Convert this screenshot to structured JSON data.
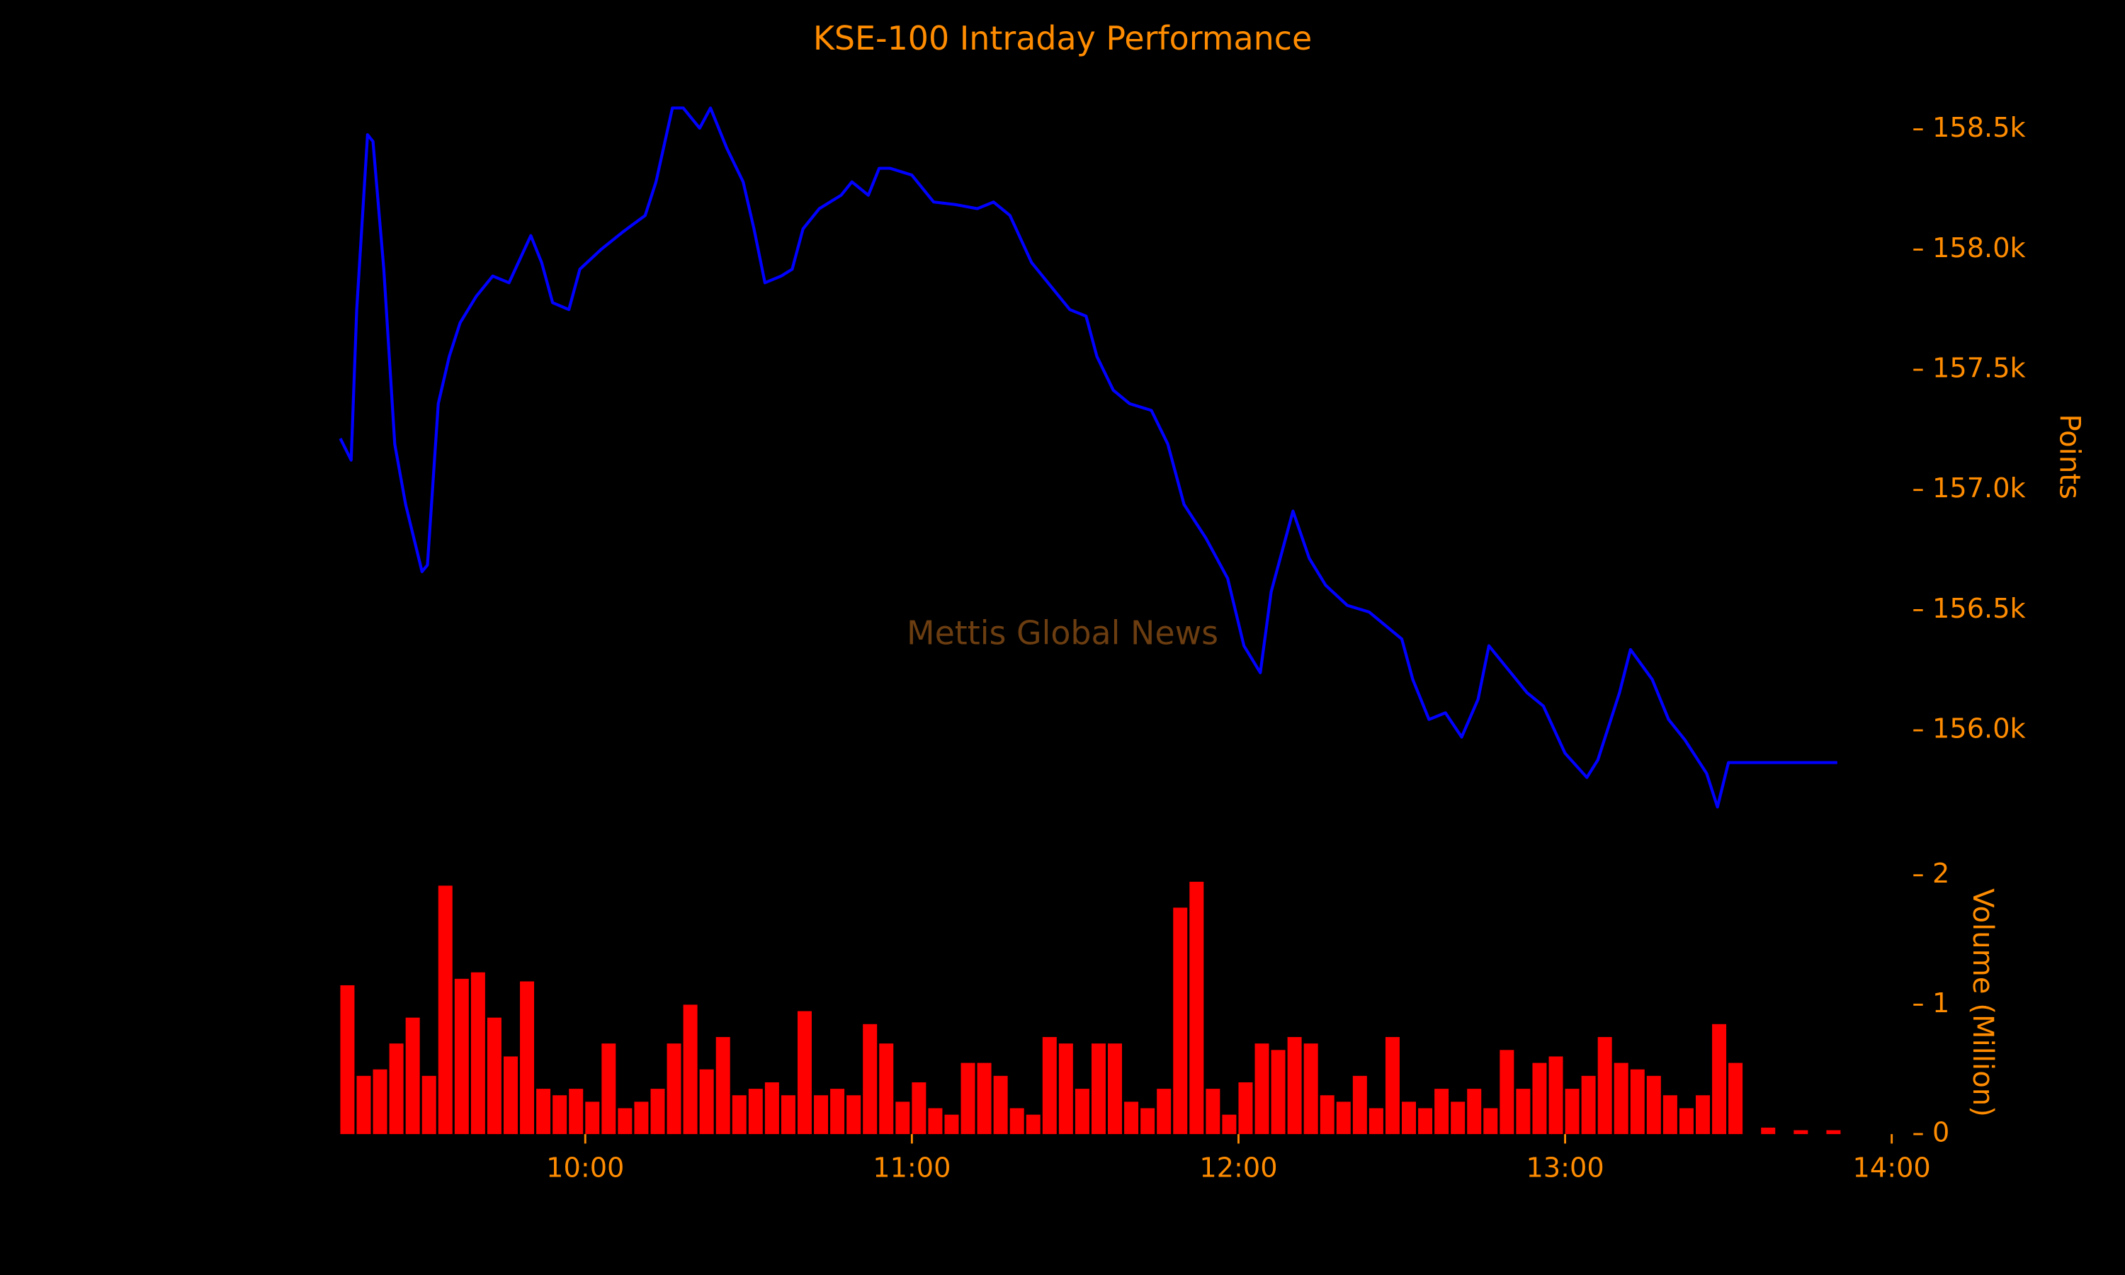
{
  "chart_data": [
    {
      "type": "line",
      "title": "KSE-100 Intraday Performance",
      "ylabel": "Points",
      "annotation": "Mettis Global News",
      "color": "#0000ff",
      "x": [
        "09:15",
        "09:17",
        "09:18",
        "09:20",
        "09:21",
        "09:23",
        "09:25",
        "09:27",
        "09:30",
        "09:31",
        "09:33",
        "09:35",
        "09:37",
        "09:40",
        "09:43",
        "09:46",
        "09:50",
        "09:52",
        "09:54",
        "09:57",
        "09:59",
        "10:03",
        "10:07",
        "10:11",
        "10:13",
        "10:16",
        "10:18",
        "10:21",
        "10:23",
        "10:26",
        "10:29",
        "10:31",
        "10:33",
        "10:36",
        "10:38",
        "10:40",
        "10:43",
        "10:47",
        "10:49",
        "10:52",
        "10:54",
        "10:56",
        "11:00",
        "11:04",
        "11:08",
        "11:12",
        "11:15",
        "11:18",
        "11:22",
        "11:25",
        "11:29",
        "11:32",
        "11:34",
        "11:37",
        "11:40",
        "11:44",
        "11:47",
        "11:50",
        "11:54",
        "11:58",
        "12:01",
        "12:04",
        "12:06",
        "12:10",
        "12:13",
        "12:16",
        "12:20",
        "12:24",
        "12:27",
        "12:30",
        "12:32",
        "12:35",
        "12:38",
        "12:41",
        "12:44",
        "12:46",
        "12:49",
        "12:53",
        "12:56",
        "13:00",
        "13:04",
        "13:06",
        "13:10",
        "13:12",
        "13:16",
        "13:19",
        "13:22",
        "13:26",
        "13:28",
        "13:30",
        "13:34",
        "13:50"
      ],
      "values": [
        157214,
        157124,
        157750,
        158478,
        158450,
        157918,
        157190,
        156940,
        156660,
        156688,
        157359,
        157555,
        157695,
        157806,
        157890,
        157862,
        158058,
        157946,
        157779,
        157750,
        157918,
        158002,
        158075,
        158142,
        158282,
        158589,
        158589,
        158505,
        158589,
        158422,
        158282,
        158086,
        157862,
        157890,
        157918,
        158086,
        158170,
        158226,
        158282,
        158226,
        158338,
        158338,
        158310,
        158198,
        158187,
        158170,
        158198,
        158142,
        157946,
        157862,
        157750,
        157723,
        157555,
        157415,
        157359,
        157331,
        157191,
        156940,
        156800,
        156632,
        156352,
        156240,
        156576,
        156912,
        156716,
        156604,
        156520,
        156492,
        156436,
        156380,
        156212,
        156045,
        156073,
        155972,
        156129,
        156352,
        156268,
        156157,
        156101,
        155905,
        155804,
        155877,
        156157,
        156336,
        156212,
        156045,
        155961,
        155821,
        155681,
        155866,
        155866,
        155866
      ],
      "xlim": [
        "09:15",
        "14:00"
      ],
      "ylim": [
        155600,
        158700
      ],
      "yticks": [
        {
          "value": 156000,
          "label": "156.0k"
        },
        {
          "value": 156500,
          "label": "156.5k"
        },
        {
          "value": 157000,
          "label": "157.0k"
        },
        {
          "value": 157500,
          "label": "157.5k"
        },
        {
          "value": 158000,
          "label": "158.0k"
        },
        {
          "value": 158500,
          "label": "158.5k"
        }
      ]
    },
    {
      "type": "bar",
      "ylabel": "Volume (Million)",
      "color": "#ff0000",
      "x": [
        "09:15",
        "09:18",
        "09:21",
        "09:24",
        "09:27",
        "09:30",
        "09:33",
        "09:36",
        "09:39",
        "09:42",
        "09:45",
        "09:48",
        "09:51",
        "09:54",
        "09:57",
        "10:00",
        "10:03",
        "10:06",
        "10:09",
        "10:12",
        "10:15",
        "10:18",
        "10:21",
        "10:24",
        "10:27",
        "10:30",
        "10:33",
        "10:36",
        "10:39",
        "10:42",
        "10:45",
        "10:48",
        "10:51",
        "10:54",
        "10:57",
        "11:00",
        "11:03",
        "11:06",
        "11:09",
        "11:12",
        "11:15",
        "11:18",
        "11:21",
        "11:24",
        "11:27",
        "11:30",
        "11:33",
        "11:36",
        "11:39",
        "11:42",
        "11:45",
        "11:48",
        "11:51",
        "11:54",
        "11:57",
        "12:00",
        "12:03",
        "12:06",
        "12:09",
        "12:12",
        "12:15",
        "12:18",
        "12:21",
        "12:24",
        "12:27",
        "12:30",
        "12:33",
        "12:36",
        "12:39",
        "12:42",
        "12:45",
        "12:48",
        "12:51",
        "12:54",
        "12:57",
        "13:00",
        "13:03",
        "13:06",
        "13:09",
        "13:12",
        "13:15",
        "13:18",
        "13:21",
        "13:24",
        "13:27",
        "13:30",
        "13:36",
        "13:42",
        "13:48"
      ],
      "values": [
        1.15,
        0.45,
        0.5,
        0.7,
        0.9,
        0.45,
        1.92,
        1.2,
        1.25,
        0.9,
        0.6,
        1.18,
        0.35,
        0.3,
        0.35,
        0.25,
        0.7,
        0.2,
        0.25,
        0.35,
        0.7,
        1.0,
        0.5,
        0.75,
        0.3,
        0.35,
        0.4,
        0.3,
        0.95,
        0.3,
        0.35,
        0.3,
        0.85,
        0.7,
        0.25,
        0.4,
        0.2,
        0.15,
        0.55,
        0.55,
        0.45,
        0.2,
        0.15,
        0.75,
        0.7,
        0.35,
        0.7,
        0.7,
        0.25,
        0.2,
        0.35,
        1.75,
        1.95,
        0.35,
        0.15,
        0.4,
        0.7,
        0.65,
        0.75,
        0.7,
        0.3,
        0.25,
        0.45,
        0.2,
        0.75,
        0.25,
        0.2,
        0.35,
        0.25,
        0.35,
        0.2,
        0.65,
        0.35,
        0.55,
        0.6,
        0.35,
        0.45,
        0.75,
        0.55,
        0.5,
        0.45,
        0.3,
        0.2,
        0.3,
        0.85,
        0.55,
        0.05,
        0.03,
        0.03
      ],
      "xlim": [
        "09:15",
        "14:00"
      ],
      "xticks": [
        "10:00",
        "11:00",
        "12:00",
        "13:00",
        "14:00"
      ],
      "ylim": [
        0,
        2
      ],
      "yticks": [
        0,
        1,
        2
      ]
    }
  ]
}
